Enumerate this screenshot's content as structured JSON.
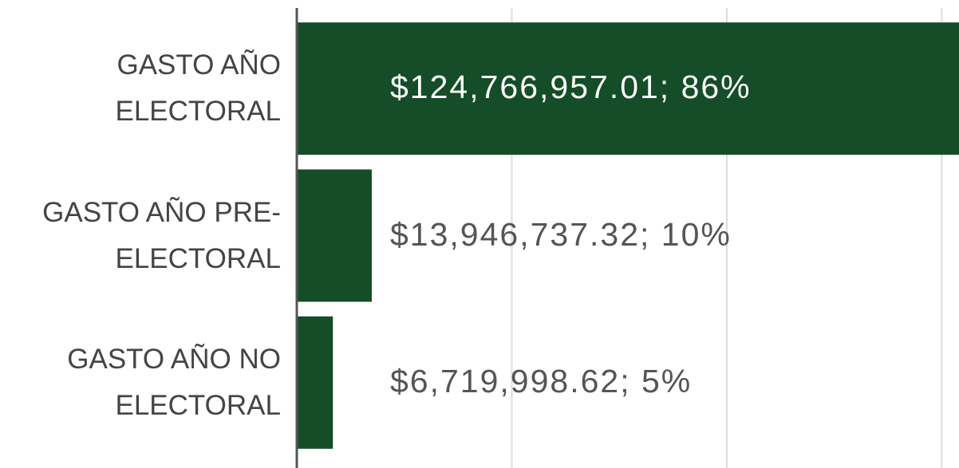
{
  "chart_data": {
    "type": "bar",
    "orientation": "horizontal",
    "categories": [
      "GASTO AÑO ELECTORAL",
      "GASTO AÑO PRE-ELECTORAL",
      "GASTO AÑO NO ELECTORAL"
    ],
    "values": [
      124766957.01,
      13946737.32,
      6719998.62
    ],
    "value_labels": [
      "$124,766,957.01; 86%",
      "$13,946,737.32; 10%",
      "$6,719,998.62; 5%"
    ],
    "color": "#144d27",
    "xlim": [
      0,
      123200000
    ],
    "xticks": [
      0,
      40000000,
      80000000,
      120000000
    ],
    "grid": true
  }
}
